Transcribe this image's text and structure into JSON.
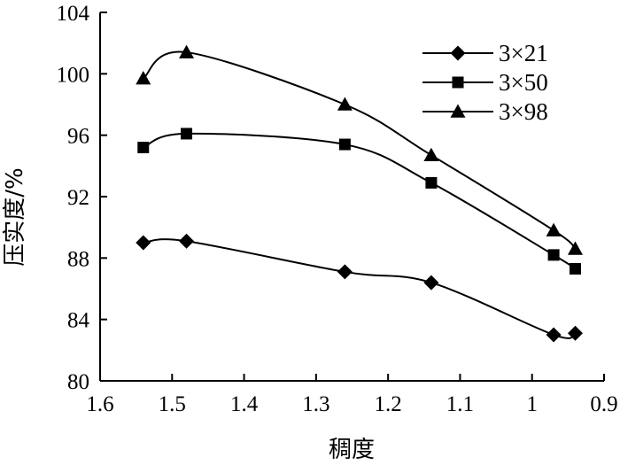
{
  "chart_data": {
    "type": "line",
    "title": "",
    "xlabel": "稠度",
    "ylabel": "压实度/%",
    "x_reversed": true,
    "xlim": [
      1.6,
      0.9
    ],
    "ylim": [
      80,
      104
    ],
    "x_ticks": [
      "1.6",
      "1.5",
      "1.4",
      "1.3",
      "1.2",
      "1.1",
      "1",
      "0.9"
    ],
    "y_ticks": [
      "104",
      "100",
      "96",
      "92",
      "88",
      "84",
      "80"
    ],
    "grid": false,
    "legend_position": "top-right",
    "series": [
      {
        "name": "3×21",
        "marker": "diamond",
        "x": [
          1.54,
          1.48,
          1.26,
          1.14,
          0.97,
          0.94
        ],
        "y": [
          89.0,
          89.1,
          87.1,
          86.4,
          83.0,
          83.1
        ]
      },
      {
        "name": "3×50",
        "marker": "square",
        "x": [
          1.54,
          1.48,
          1.26,
          1.14,
          0.97,
          0.94
        ],
        "y": [
          95.2,
          96.1,
          95.4,
          92.9,
          88.2,
          87.3
        ]
      },
      {
        "name": "3×98",
        "marker": "triangle",
        "x": [
          1.54,
          1.48,
          1.26,
          1.14,
          0.97,
          0.94
        ],
        "y": [
          99.7,
          101.4,
          98.0,
          94.7,
          89.8,
          88.6
        ]
      }
    ]
  }
}
